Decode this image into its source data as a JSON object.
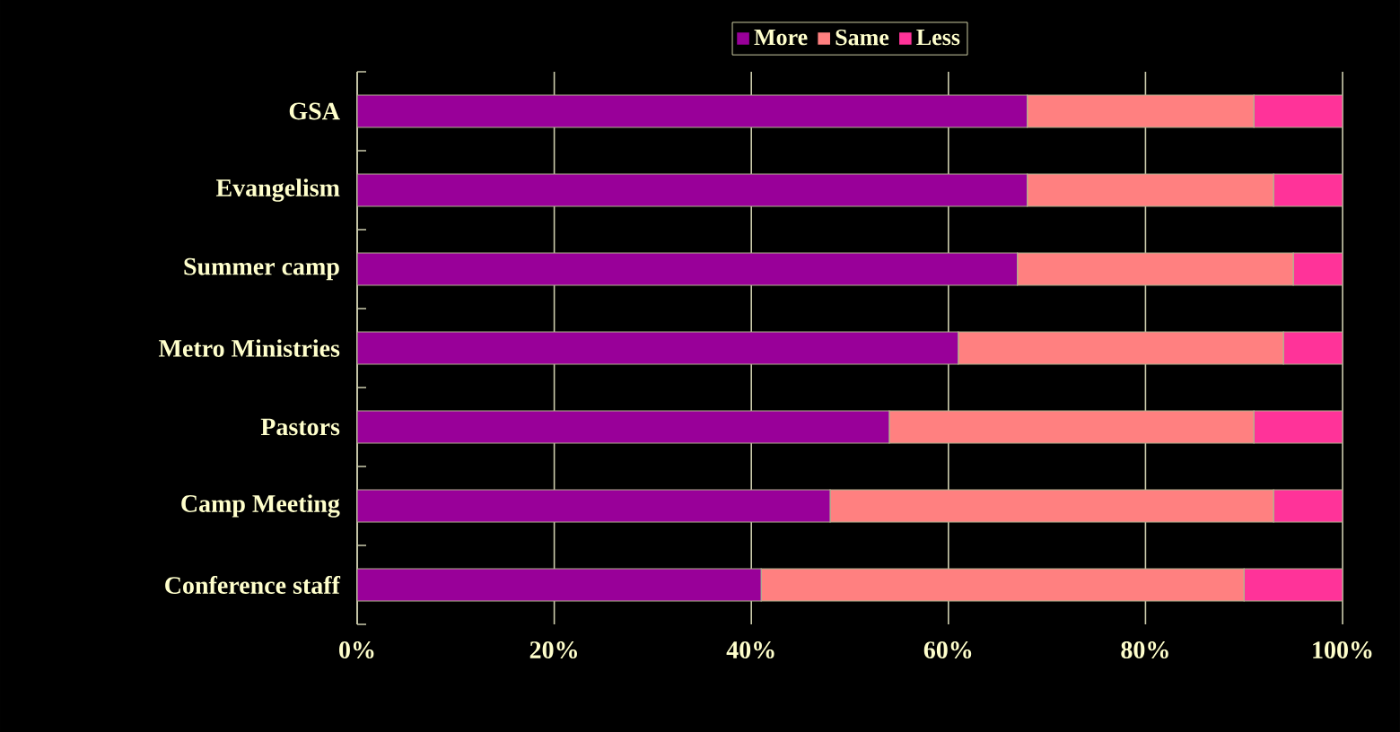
{
  "chart_data": {
    "type": "bar",
    "orientation": "horizontal",
    "stacked": true,
    "categories": [
      "GSA",
      "Evangelism",
      "Summer camp",
      "Metro Ministries",
      "Pastors",
      "Camp Meeting",
      "Conference staff"
    ],
    "series": [
      {
        "name": "More",
        "color": "#990099",
        "values": [
          68,
          68,
          67,
          61,
          54,
          48,
          41
        ]
      },
      {
        "name": "Same",
        "color": "#ff8080",
        "values": [
          23,
          25,
          28,
          33,
          37,
          45,
          49
        ]
      },
      {
        "name": "Less",
        "color": "#ff3399",
        "values": [
          9,
          7,
          5,
          6,
          9,
          7,
          10
        ]
      }
    ],
    "xlim": [
      0,
      100
    ],
    "xticks": [
      {
        "value": 0,
        "label": "0%"
      },
      {
        "value": 20,
        "label": "20%"
      },
      {
        "value": 40,
        "label": "40%"
      },
      {
        "value": 60,
        "label": "60%"
      },
      {
        "value": 80,
        "label": "80%"
      },
      {
        "value": 100,
        "label": "100%"
      }
    ],
    "grid": "x",
    "legend": "top"
  }
}
